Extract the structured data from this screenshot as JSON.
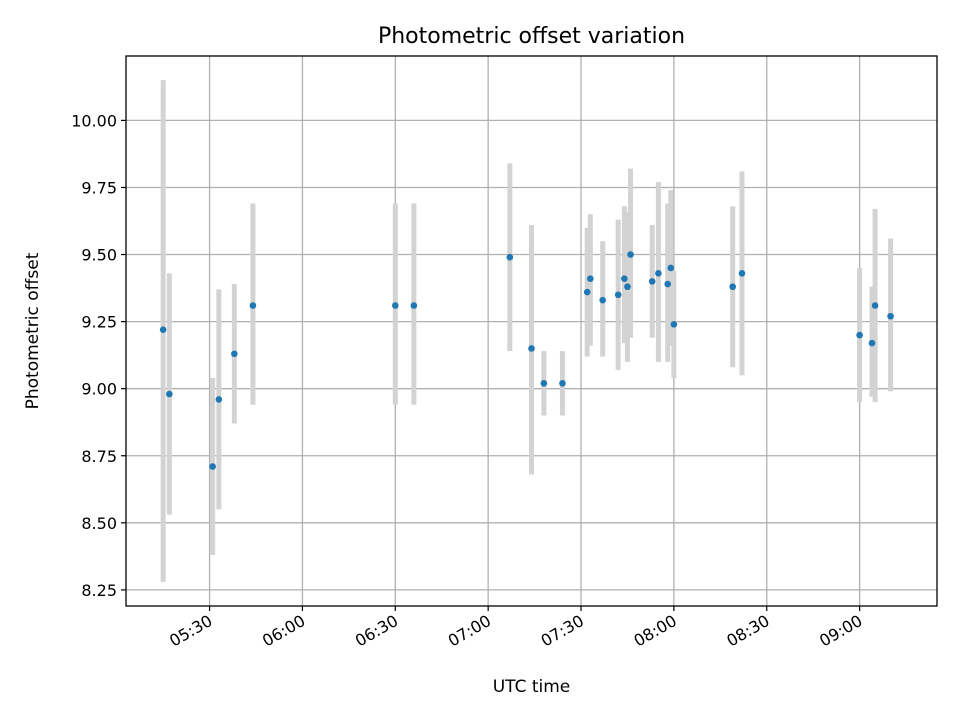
{
  "chart_data": {
    "type": "scatter",
    "title": "Photometric offset variation",
    "xlabel": "UTC time",
    "ylabel": "Photometric offset",
    "xlim": [
      "05:03",
      "09:25"
    ],
    "ylim": [
      8.19,
      10.24
    ],
    "x_ticks": [
      "05:30",
      "06:00",
      "06:30",
      "07:00",
      "07:30",
      "08:00",
      "08:30",
      "09:00"
    ],
    "y_ticks": [
      "8.25",
      "8.50",
      "8.75",
      "9.00",
      "9.25",
      "9.50",
      "9.75",
      "10.00"
    ],
    "grid": true,
    "marker_color": "#1f77b4",
    "errorbar_color": "#d3d3d3",
    "points": [
      {
        "t": "05:15",
        "y": 9.22,
        "lo": 8.28,
        "hi": 10.15
      },
      {
        "t": "05:17",
        "y": 8.98,
        "lo": 8.53,
        "hi": 9.43
      },
      {
        "t": "05:31",
        "y": 8.71,
        "lo": 8.38,
        "hi": 9.04
      },
      {
        "t": "05:33",
        "y": 8.96,
        "lo": 8.55,
        "hi": 9.37
      },
      {
        "t": "05:38",
        "y": 9.13,
        "lo": 8.87,
        "hi": 9.39
      },
      {
        "t": "05:44",
        "y": 9.31,
        "lo": 8.94,
        "hi": 9.69
      },
      {
        "t": "06:30",
        "y": 9.31,
        "lo": 8.94,
        "hi": 9.69
      },
      {
        "t": "06:36",
        "y": 9.31,
        "lo": 8.94,
        "hi": 9.69
      },
      {
        "t": "07:07",
        "y": 9.49,
        "lo": 9.14,
        "hi": 9.84
      },
      {
        "t": "07:14",
        "y": 9.15,
        "lo": 8.68,
        "hi": 9.61
      },
      {
        "t": "07:18",
        "y": 9.02,
        "lo": 8.9,
        "hi": 9.14
      },
      {
        "t": "07:24",
        "y": 9.02,
        "lo": 8.9,
        "hi": 9.14
      },
      {
        "t": "07:32",
        "y": 9.36,
        "lo": 9.12,
        "hi": 9.6
      },
      {
        "t": "07:33",
        "y": 9.41,
        "lo": 9.16,
        "hi": 9.65
      },
      {
        "t": "07:37",
        "y": 9.33,
        "lo": 9.12,
        "hi": 9.55
      },
      {
        "t": "07:42",
        "y": 9.35,
        "lo": 9.07,
        "hi": 9.63
      },
      {
        "t": "07:44",
        "y": 9.41,
        "lo": 9.17,
        "hi": 9.68
      },
      {
        "t": "07:45",
        "y": 9.38,
        "lo": 9.1,
        "hi": 9.66
      },
      {
        "t": "07:46",
        "y": 9.5,
        "lo": 9.19,
        "hi": 9.82
      },
      {
        "t": "07:53",
        "y": 9.4,
        "lo": 9.19,
        "hi": 9.61
      },
      {
        "t": "07:55",
        "y": 9.43,
        "lo": 9.1,
        "hi": 9.77
      },
      {
        "t": "07:58",
        "y": 9.39,
        "lo": 9.1,
        "hi": 9.69
      },
      {
        "t": "07:59",
        "y": 9.45,
        "lo": 9.16,
        "hi": 9.74
      },
      {
        "t": "08:00",
        "y": 9.24,
        "lo": 9.04,
        "hi": 9.44
      },
      {
        "t": "08:19",
        "y": 9.38,
        "lo": 9.08,
        "hi": 9.68
      },
      {
        "t": "08:22",
        "y": 9.43,
        "lo": 9.05,
        "hi": 9.81
      },
      {
        "t": "09:00",
        "y": 9.2,
        "lo": 8.95,
        "hi": 9.45
      },
      {
        "t": "09:04",
        "y": 9.17,
        "lo": 8.97,
        "hi": 9.38
      },
      {
        "t": "09:05",
        "y": 9.31,
        "lo": 8.95,
        "hi": 9.67
      },
      {
        "t": "09:10",
        "y": 9.27,
        "lo": 8.99,
        "hi": 9.56
      }
    ]
  }
}
